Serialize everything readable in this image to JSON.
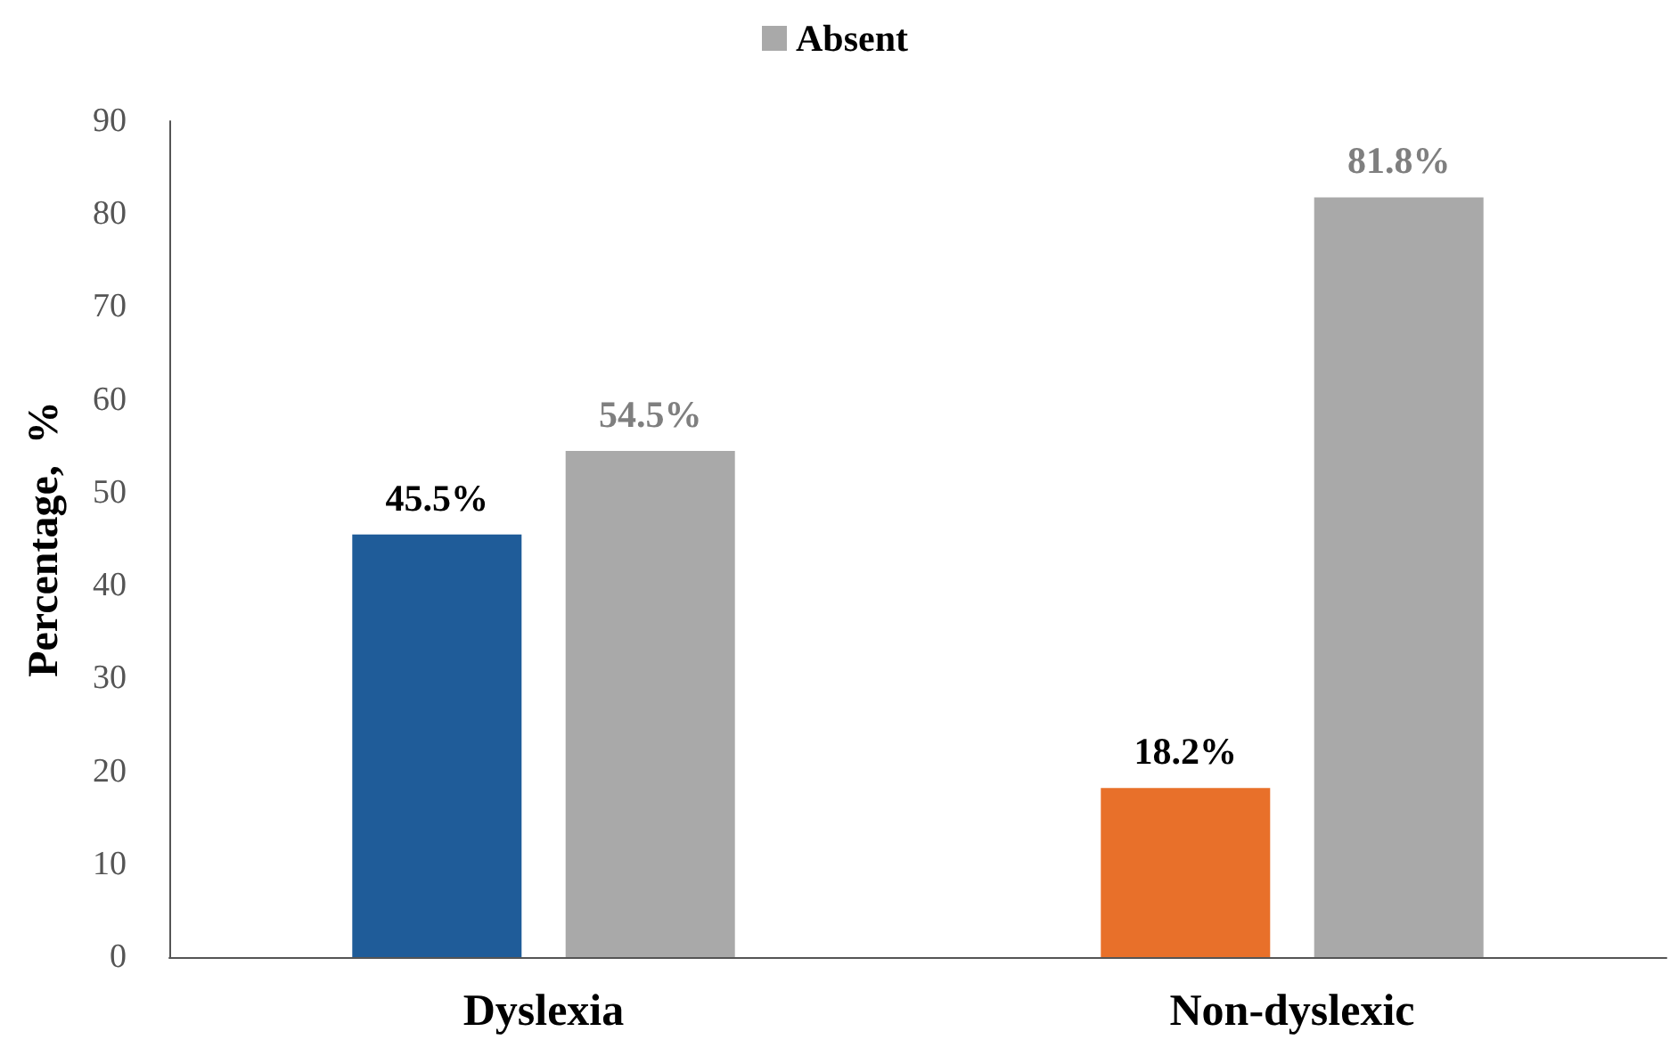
{
  "chart_data": {
    "type": "bar",
    "ylabel": "Percentage,  %",
    "categories": [
      "Dyslexia",
      "Non-dyslexic"
    ],
    "series": [
      {
        "colors": [
          "#1f5c99",
          "#e8702a"
        ],
        "values": [
          45.5,
          18.2
        ],
        "value_labels": [
          "45.5%",
          "18.2%"
        ]
      },
      {
        "name": "Absent",
        "color": "#a9a9a9",
        "values": [
          54.5,
          81.8
        ],
        "value_labels": [
          "54.5%",
          "81.8%"
        ]
      }
    ],
    "ylim": [
      0,
      90
    ],
    "yticks": [
      0,
      10,
      20,
      30,
      40,
      50,
      60,
      70,
      80,
      90
    ],
    "grid": false,
    "legend": "top"
  }
}
